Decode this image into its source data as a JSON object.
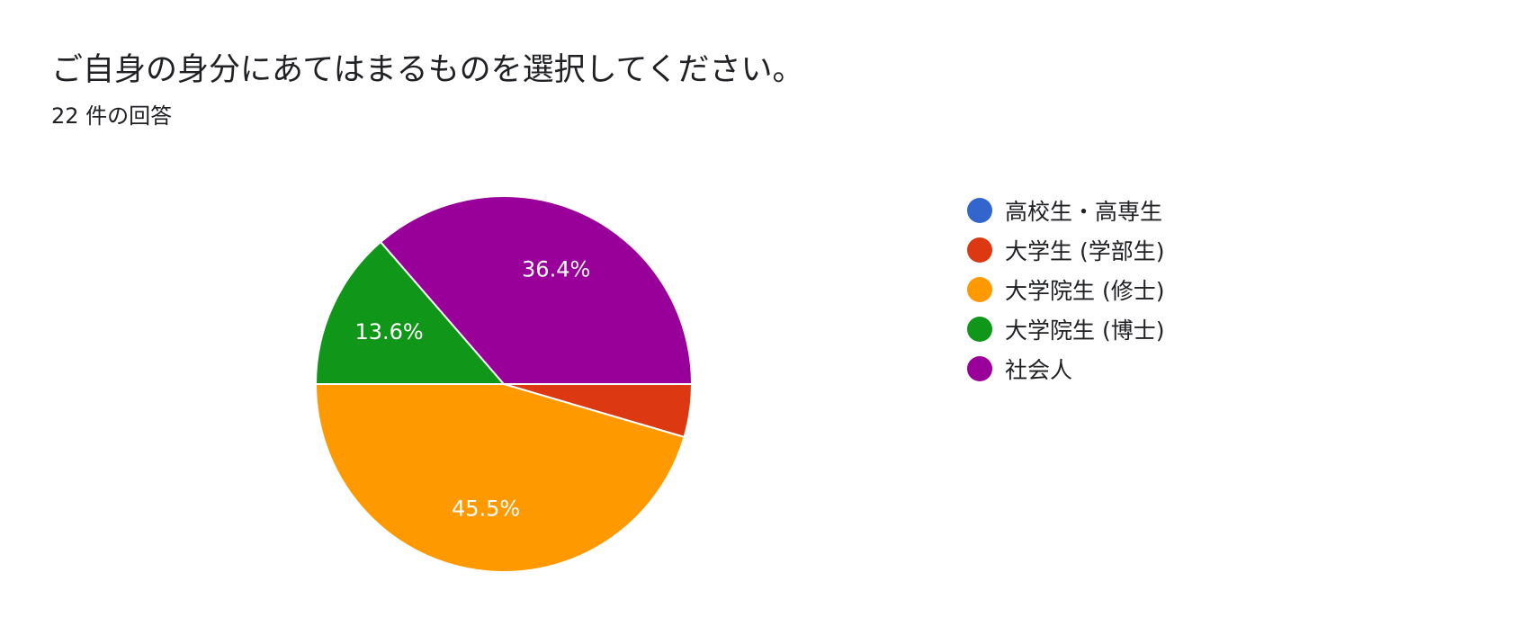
{
  "question": {
    "title": "ご自身の身分にあてはまるものを選択してください。",
    "response_count": "22 件の回答"
  },
  "chart_data": {
    "type": "pie",
    "categories": [
      "高校生・高専生",
      "大学生 (学部生)",
      "大学院生 (修士)",
      "大学院生 (博士)",
      "社会人"
    ],
    "values": [
      0,
      1,
      10,
      3,
      8
    ],
    "percent_labels": [
      "",
      "",
      "45.5%",
      "13.6%",
      "36.4%"
    ],
    "colors": [
      "#3366cc",
      "#dc3912",
      "#ff9900",
      "#109618",
      "#990099"
    ],
    "legend_position": "right",
    "start_angle": "3 o'clock",
    "direction": "clockwise"
  }
}
